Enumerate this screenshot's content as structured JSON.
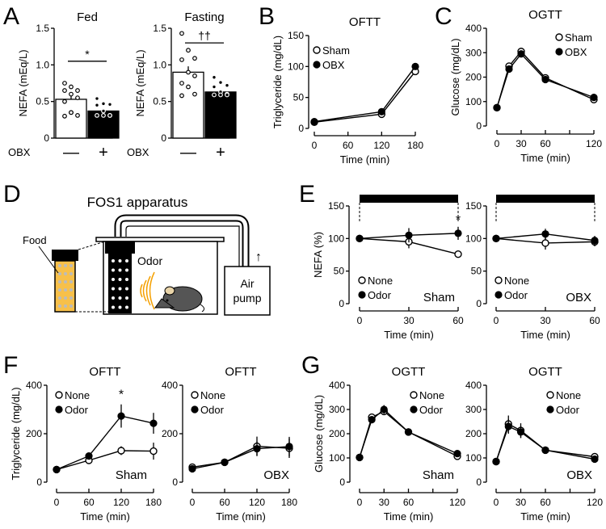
{
  "panel_labels": [
    "A",
    "B",
    "C",
    "D",
    "E",
    "F",
    "G"
  ],
  "diagram": {
    "title": "FOS1 apparatus",
    "food_label": "Food",
    "odor_label": "Odor",
    "pump_label_1": "Air",
    "pump_label_2": "pump",
    "arrow": "↑",
    "colors": {
      "odor_wave": "#f5a000",
      "food": "#f7c04a",
      "mouse": "#555555"
    }
  },
  "chart_data": [
    {
      "id": "A-fed",
      "type": "bar",
      "title": "Fed",
      "ylabel": "NEFA (mEq/L)",
      "ylim": [
        0,
        1.5
      ],
      "yticks": [
        0,
        0.5,
        1.0,
        1.5
      ],
      "ytick_labels": [
        "0",
        "0.5",
        "1.0",
        "1.5"
      ],
      "row_label": "OBX",
      "categories": [
        "—",
        "+"
      ],
      "values": [
        0.53,
        0.37
      ],
      "errors": [
        0.05,
        0.03
      ],
      "points": [
        [
          0.75,
          0.7,
          0.65,
          0.65,
          0.6,
          0.55,
          0.5,
          0.35,
          0.31,
          0.3,
          0.35
        ],
        [
          0.54,
          0.47,
          0.46,
          0.45,
          0.37,
          0.31,
          0.31,
          0.31,
          0.31
        ]
      ],
      "fills": [
        "#ffffff",
        "#000000"
      ],
      "significance": "*",
      "sig_level": 1.05
    },
    {
      "id": "A-fasting",
      "type": "bar",
      "title": "Fasting",
      "ylabel": "NEFA (mEq/L)",
      "ylim": [
        0,
        1.5
      ],
      "yticks": [
        0,
        0.5,
        1.0,
        1.5
      ],
      "ytick_labels": [
        "0",
        "0.5",
        "1.0",
        "1.5"
      ],
      "row_label": "OBX",
      "categories": [
        "—",
        "+"
      ],
      "values": [
        0.9,
        0.63
      ],
      "errors": [
        0.08,
        0.03
      ],
      "points": [
        [
          1.43,
          1.2,
          1.09,
          1.07,
          0.9,
          0.85,
          0.75,
          0.7,
          0.6,
          0.58
        ],
        [
          0.83,
          0.76,
          0.72,
          0.7,
          0.63,
          0.6,
          0.59,
          0.59,
          0.59
        ]
      ],
      "fills": [
        "#ffffff",
        "#000000"
      ],
      "significance": "††",
      "sig_level": 1.3
    },
    {
      "id": "B",
      "type": "line",
      "title": "OFTT",
      "ylabel": "Triglyceride (mg/dL)",
      "xlabel": "Time (min)",
      "xlim": [
        0,
        180
      ],
      "ylim": [
        0,
        150
      ],
      "xticks": [
        0,
        60,
        120,
        180
      ],
      "xtick_labels": [
        "0",
        "60",
        "120",
        "180"
      ],
      "yticks": [
        0,
        50,
        100,
        150
      ],
      "ytick_labels": [
        "0",
        "50",
        "100",
        "150"
      ],
      "series": [
        {
          "name": "Sham",
          "marker": "open",
          "x": [
            0,
            120,
            180
          ],
          "y": [
            10,
            23,
            92
          ],
          "err": [
            0,
            0,
            0
          ]
        },
        {
          "name": "OBX",
          "marker": "filled",
          "x": [
            0,
            120,
            180
          ],
          "y": [
            11,
            27,
            100
          ],
          "err": [
            0,
            0,
            0
          ]
        }
      ],
      "group_label": "",
      "annotations": []
    },
    {
      "id": "C",
      "type": "line",
      "title": "OGTT",
      "ylabel": "Glucose (mg/dL)",
      "xlabel": "Time (min)",
      "xlim": [
        0,
        120
      ],
      "ylim": [
        0,
        400
      ],
      "xticks": [
        0,
        30,
        60,
        90,
        120
      ],
      "xtick_labels": [
        "0",
        "30",
        "60",
        "",
        "120"
      ],
      "yticks": [
        0,
        100,
        200,
        300,
        400
      ],
      "ytick_labels": [
        "0",
        "100",
        "200",
        "300",
        "400"
      ],
      "series": [
        {
          "name": "Sham",
          "marker": "open",
          "x": [
            0,
            15,
            30,
            60,
            120
          ],
          "y": [
            75,
            245,
            305,
            197,
            108
          ],
          "err": [
            0,
            0,
            0,
            0,
            0
          ]
        },
        {
          "name": "OBX",
          "marker": "filled",
          "x": [
            0,
            15,
            30,
            60,
            120
          ],
          "y": [
            75,
            233,
            295,
            190,
            117
          ],
          "err": [
            0,
            0,
            0,
            0,
            0
          ]
        }
      ],
      "group_label": "",
      "annotations": []
    },
    {
      "id": "E-sham",
      "type": "line",
      "title": "",
      "ylabel": "NEFA (%)",
      "xlabel": "Time (min)",
      "xlim": [
        0,
        60
      ],
      "ylim": [
        0,
        150
      ],
      "xticks": [
        0,
        30,
        60
      ],
      "xtick_labels": [
        "0",
        "30",
        "60"
      ],
      "yticks": [
        0,
        50,
        100,
        150
      ],
      "ytick_labels": [
        "0",
        "50",
        "100",
        "150"
      ],
      "series": [
        {
          "name": "None",
          "marker": "open",
          "x": [
            0,
            30,
            60
          ],
          "y": [
            100,
            95,
            76
          ],
          "err": [
            0,
            10,
            4
          ]
        },
        {
          "name": "Odor",
          "marker": "filled",
          "x": [
            0,
            30,
            60
          ],
          "y": [
            100,
            105,
            108
          ],
          "err": [
            0,
            11,
            10
          ]
        }
      ],
      "group_label": "Sham",
      "annotations": [
        {
          "text": "*",
          "x": 60,
          "y": 122
        }
      ],
      "odor_bar": [
        0,
        60
      ]
    },
    {
      "id": "E-obx",
      "type": "line",
      "title": "",
      "ylabel": "",
      "xlabel": "Time (min)",
      "xlim": [
        0,
        60
      ],
      "ylim": [
        0,
        150
      ],
      "xticks": [
        0,
        30,
        60
      ],
      "xtick_labels": [
        "0",
        "30",
        "60"
      ],
      "yticks": [
        0,
        50,
        100,
        150
      ],
      "ytick_labels": [
        "0",
        "50",
        "100",
        "150"
      ],
      "series": [
        {
          "name": "None",
          "marker": "open",
          "x": [
            0,
            30,
            60
          ],
          "y": [
            100,
            93,
            95
          ],
          "err": [
            0,
            10,
            7
          ]
        },
        {
          "name": "Odor",
          "marker": "filled",
          "x": [
            0,
            30,
            60
          ],
          "y": [
            100,
            107,
            97
          ],
          "err": [
            0,
            8,
            7
          ]
        }
      ],
      "group_label": "OBX",
      "annotations": [],
      "odor_bar": [
        0,
        60
      ]
    },
    {
      "id": "F-sham",
      "type": "line",
      "title": "OFTT",
      "ylabel": "Triglyceride (mg/dL)",
      "xlabel": "Time (min)",
      "xlim": [
        0,
        180
      ],
      "ylim": [
        0,
        400
      ],
      "xticks": [
        0,
        60,
        120,
        180
      ],
      "xtick_labels": [
        "0",
        "60",
        "120",
        "180"
      ],
      "yticks": [
        0,
        200,
        400
      ],
      "ytick_labels": [
        "0",
        "200",
        "400"
      ],
      "series": [
        {
          "name": "None",
          "marker": "open",
          "x": [
            0,
            60,
            120,
            180
          ],
          "y": [
            52,
            90,
            130,
            128
          ],
          "err": [
            6,
            8,
            18,
            35
          ]
        },
        {
          "name": "Odor",
          "marker": "filled",
          "x": [
            0,
            60,
            120,
            180
          ],
          "y": [
            52,
            108,
            273,
            243
          ],
          "err": [
            6,
            10,
            48,
            43
          ]
        }
      ],
      "group_label": "Sham",
      "annotations": [
        {
          "text": "*",
          "x": 120,
          "y": 345
        }
      ]
    },
    {
      "id": "F-obx",
      "type": "line",
      "title": "OFTT",
      "ylabel": "",
      "xlabel": "Time (min)",
      "xlim": [
        0,
        180
      ],
      "ylim": [
        0,
        400
      ],
      "xticks": [
        0,
        60,
        120,
        180
      ],
      "xtick_labels": [
        "0",
        "60",
        "120",
        "180"
      ],
      "yticks": [
        0,
        200,
        400
      ],
      "ytick_labels": [
        "0",
        "200",
        "400"
      ],
      "series": [
        {
          "name": "None",
          "marker": "open",
          "x": [
            0,
            60,
            120,
            180
          ],
          "y": [
            62,
            82,
            148,
            140
          ],
          "err": [
            8,
            8,
            40,
            40
          ]
        },
        {
          "name": "Odor",
          "marker": "filled",
          "x": [
            0,
            60,
            120,
            180
          ],
          "y": [
            55,
            82,
            138,
            147
          ],
          "err": [
            6,
            8,
            30,
            40
          ]
        }
      ],
      "group_label": "OBX",
      "annotations": []
    },
    {
      "id": "G-sham",
      "type": "line",
      "title": "OGTT",
      "ylabel": "Glucose (mg/dL)",
      "xlabel": "Time (min)",
      "xlim": [
        0,
        120
      ],
      "ylim": [
        0,
        400
      ],
      "xticks": [
        0,
        30,
        60,
        90,
        120
      ],
      "xtick_labels": [
        "0",
        "30",
        "60",
        "",
        "120"
      ],
      "yticks": [
        0,
        100,
        200,
        300,
        400
      ],
      "ytick_labels": [
        "0",
        "100",
        "200",
        "300",
        "400"
      ],
      "series": [
        {
          "name": "None",
          "marker": "open",
          "x": [
            0,
            15,
            30,
            60,
            120
          ],
          "y": [
            102,
            268,
            292,
            207,
            107
          ],
          "err": [
            5,
            8,
            15,
            10,
            6
          ]
        },
        {
          "name": "Odor",
          "marker": "filled",
          "x": [
            0,
            15,
            30,
            60,
            120
          ],
          "y": [
            102,
            258,
            300,
            207,
            118
          ],
          "err": [
            5,
            10,
            18,
            10,
            6
          ]
        }
      ],
      "group_label": "Sham",
      "annotations": []
    },
    {
      "id": "G-obx",
      "type": "line",
      "title": "OGTT",
      "ylabel": "",
      "xlabel": "Time (min)",
      "xlim": [
        0,
        120
      ],
      "ylim": [
        0,
        400
      ],
      "xticks": [
        0,
        30,
        60,
        90,
        120
      ],
      "xtick_labels": [
        "0",
        "30",
        "60",
        "",
        "120"
      ],
      "yticks": [
        0,
        100,
        200,
        300,
        400
      ],
      "ytick_labels": [
        "0",
        "100",
        "200",
        "300",
        "400"
      ],
      "series": [
        {
          "name": "None",
          "marker": "open",
          "x": [
            0,
            15,
            30,
            60,
            120
          ],
          "y": [
            85,
            240,
            213,
            132,
            105
          ],
          "err": [
            4,
            35,
            30,
            8,
            6
          ]
        },
        {
          "name": "Odor",
          "marker": "filled",
          "x": [
            0,
            15,
            30,
            60,
            120
          ],
          "y": [
            85,
            230,
            207,
            132,
            95
          ],
          "err": [
            4,
            30,
            25,
            8,
            6
          ]
        }
      ],
      "group_label": "OBX",
      "annotations": []
    }
  ]
}
